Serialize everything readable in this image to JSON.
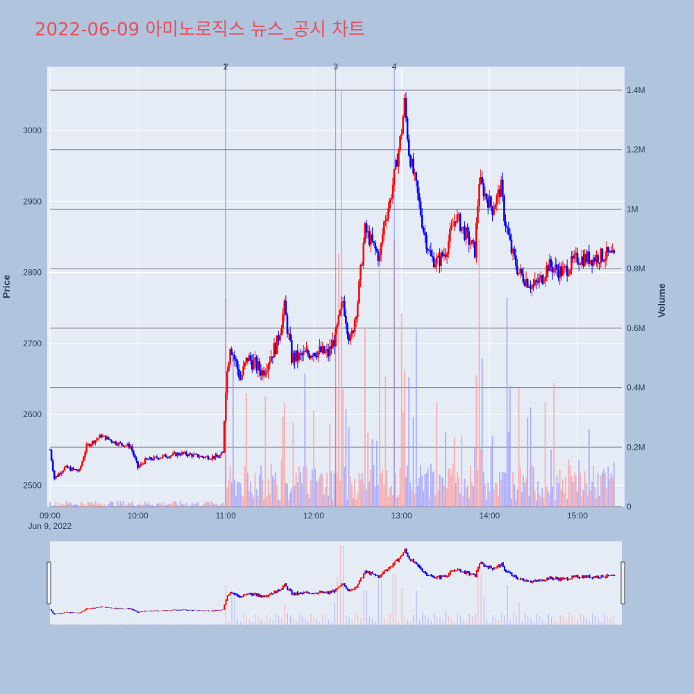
{
  "title": "2022-06-09 아미노로직스 뉴스_공시 차트",
  "colors": {
    "background": "#b0c4de",
    "plot_bg": "#e5ecf6",
    "up": "#ff0000",
    "down": "#0000ff",
    "title": "#e8505b",
    "volume_up": "#ff9a9a",
    "volume_down": "#9a9aff",
    "news_line": "#6b7cff"
  },
  "chart_data": {
    "type": "candlestick",
    "title": "2022-06-09 아미노로직스 뉴스_공시 차트",
    "date_label": "Jun 9, 2022",
    "xlabel": "",
    "ylabel": "Price",
    "y2label": "Volume",
    "ylim": [
      2470,
      3090
    ],
    "y2lim": [
      0,
      1400000
    ],
    "y_ticks": [
      2500,
      2600,
      2700,
      2800,
      2900,
      3000
    ],
    "y2_ticks": [
      {
        "value": 0,
        "label": "0"
      },
      {
        "value": 200000,
        "label": "0.2M"
      },
      {
        "value": 400000,
        "label": "0.4M"
      },
      {
        "value": 600000,
        "label": "0.6M"
      },
      {
        "value": 800000,
        "label": "0.8M"
      },
      {
        "value": 1000000,
        "label": "1M"
      },
      {
        "value": 1200000,
        "label": "1.2M"
      },
      {
        "value": 1400000,
        "label": "1.4M"
      }
    ],
    "x_ticks": [
      "09:00",
      "10:00",
      "11:00",
      "12:00",
      "13:00",
      "14:00",
      "15:00"
    ],
    "x_range": [
      "09:00",
      "15:30"
    ],
    "price_keypoints": [
      [
        "09:00",
        2550
      ],
      [
        "09:03",
        2510
      ],
      [
        "09:10",
        2525
      ],
      [
        "09:20",
        2520
      ],
      [
        "09:25",
        2555
      ],
      [
        "09:35",
        2570
      ],
      [
        "09:45",
        2560
      ],
      [
        "09:55",
        2555
      ],
      [
        "10:00",
        2525
      ],
      [
        "10:05",
        2535
      ],
      [
        "10:15",
        2540
      ],
      [
        "10:30",
        2545
      ],
      [
        "10:45",
        2540
      ],
      [
        "10:55",
        2540
      ],
      [
        "10:58",
        2545
      ],
      [
        "11:00",
        2640
      ],
      [
        "11:03",
        2700
      ],
      [
        "11:10",
        2650
      ],
      [
        "11:15",
        2680
      ],
      [
        "11:25",
        2660
      ],
      [
        "11:35",
        2700
      ],
      [
        "11:40",
        2750
      ],
      [
        "11:45",
        2680
      ],
      [
        "11:50",
        2680
      ],
      [
        "12:00",
        2690
      ],
      [
        "12:10",
        2685
      ],
      [
        "12:15",
        2710
      ],
      [
        "12:20",
        2760
      ],
      [
        "12:25",
        2700
      ],
      [
        "12:30",
        2760
      ],
      [
        "12:35",
        2860
      ],
      [
        "12:40",
        2840
      ],
      [
        "12:45",
        2820
      ],
      [
        "12:48",
        2870
      ],
      [
        "12:52",
        2900
      ],
      [
        "12:57",
        2960
      ],
      [
        "13:00",
        3000
      ],
      [
        "13:02",
        3040
      ],
      [
        "13:05",
        2970
      ],
      [
        "13:10",
        2920
      ],
      [
        "13:15",
        2860
      ],
      [
        "13:20",
        2820
      ],
      [
        "13:25",
        2815
      ],
      [
        "13:30",
        2830
      ],
      [
        "13:37",
        2880
      ],
      [
        "13:42",
        2860
      ],
      [
        "13:50",
        2830
      ],
      [
        "13:53",
        2930
      ],
      [
        "13:57",
        2910
      ],
      [
        "14:02",
        2890
      ],
      [
        "14:08",
        2920
      ],
      [
        "14:10",
        2880
      ],
      [
        "14:15",
        2830
      ],
      [
        "14:20",
        2800
      ],
      [
        "14:25",
        2790
      ],
      [
        "14:30",
        2780
      ],
      [
        "14:35",
        2790
      ],
      [
        "14:40",
        2810
      ],
      [
        "14:50",
        2800
      ],
      [
        "15:00",
        2820
      ],
      [
        "15:10",
        2820
      ],
      [
        "15:20",
        2825
      ],
      [
        "15:25",
        2820
      ]
    ],
    "volume_bursts": [
      [
        "11:00",
        0.7
      ],
      [
        "11:05",
        0.5
      ],
      [
        "11:40",
        0.35
      ],
      [
        "12:15",
        0.4
      ],
      [
        "12:17",
        0.85
      ],
      [
        "12:19",
        1.4
      ],
      [
        "12:35",
        0.6
      ],
      [
        "12:45",
        0.8
      ],
      [
        "12:55",
        0.9
      ],
      [
        "13:00",
        0.65
      ],
      [
        "13:10",
        0.6
      ],
      [
        "13:30",
        0.25
      ],
      [
        "13:50",
        0.2
      ],
      [
        "13:53",
        0.9
      ],
      [
        "13:55",
        0.5
      ],
      [
        "14:12",
        0.7
      ],
      [
        "14:20",
        0.4
      ],
      [
        "15:25",
        0.15
      ],
      [
        "15:29",
        0.5
      ]
    ],
    "news_markers": [
      {
        "label": "1",
        "time": "11:00"
      },
      {
        "label": "2",
        "time": "11:00"
      },
      {
        "label": "3",
        "time": "12:15"
      },
      {
        "label": "4",
        "time": "12:55"
      }
    ]
  }
}
